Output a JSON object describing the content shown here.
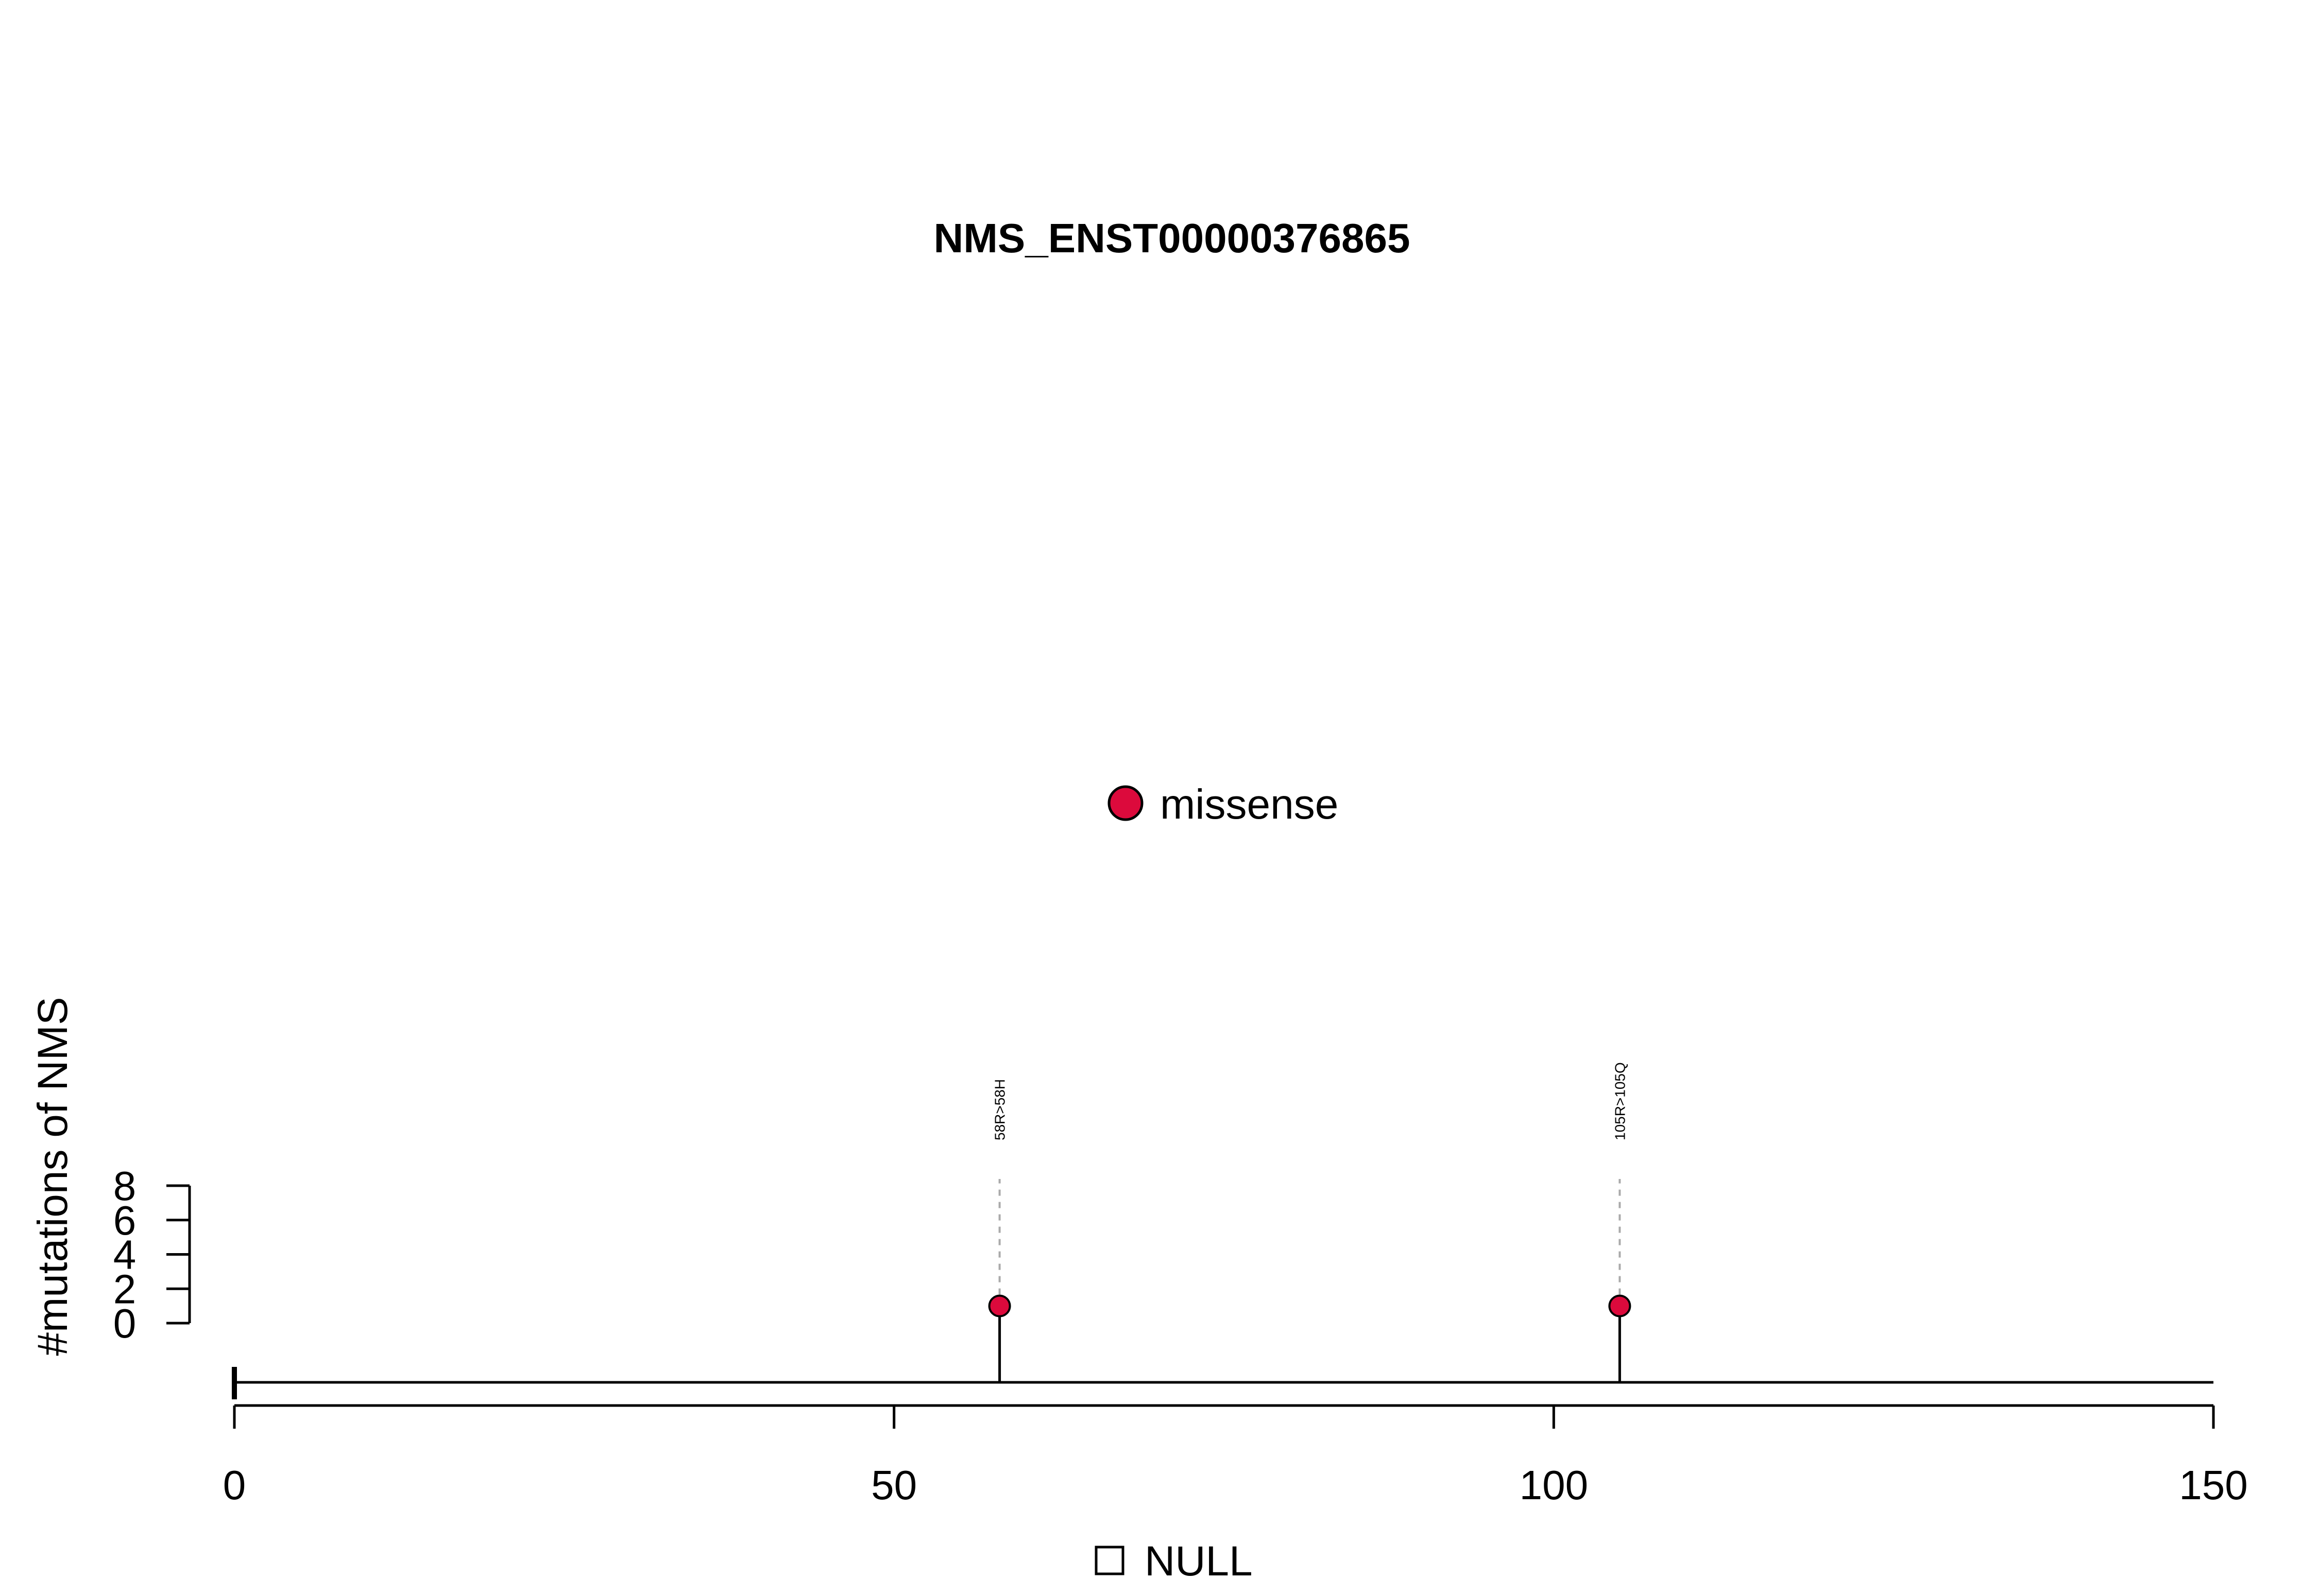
{
  "chart_data": {
    "type": "lollipop",
    "title": "NMS_ENST00000376865",
    "ylabel": "#mutations of NMS",
    "xlim": [
      0,
      150
    ],
    "x_ticks": [
      "0",
      "50",
      "100",
      "150"
    ],
    "x_tick_values": [
      0,
      50,
      100,
      150
    ],
    "y_ticks": [
      "0",
      "2",
      "4",
      "6",
      "8"
    ],
    "y_tick_values": [
      0,
      2,
      4,
      6,
      8
    ],
    "ylim": [
      0,
      8
    ],
    "legend": {
      "label": "missense",
      "color": "#DC0A3C",
      "placement": "top-center"
    },
    "domain_legend": {
      "label": "NULL",
      "placement": "bottom-center"
    },
    "mutations": [
      {
        "position": 58,
        "count": 1,
        "label": "58R>58H",
        "type": "missense"
      },
      {
        "position": 105,
        "count": 1,
        "label": "105R>105Q",
        "type": "missense"
      }
    ],
    "colors": {
      "missense": "#DC0A3C",
      "guide": "#AAAAAA",
      "axis": "#000000"
    }
  }
}
